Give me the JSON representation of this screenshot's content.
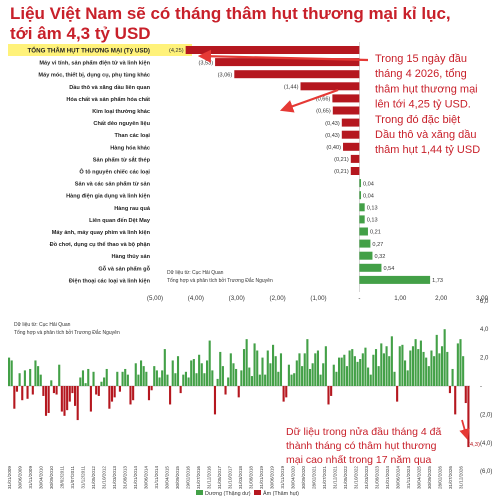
{
  "title": {
    "line1": "Liệu Việt Nam sẽ có tháng thâm hụt thương mại kỉ lục,",
    "line2": "tới âm 4,3 tỷ USD"
  },
  "colors": {
    "negative": "#b5171f",
    "positive": "#43a047",
    "highlight_bg": "#fff27a",
    "annotation": "#c8202a",
    "arrow": "#e53935"
  },
  "chart_data": [
    {
      "type": "bar",
      "orientation": "horizontal",
      "categories": [
        "TỔNG THÂM HỤT THƯƠNG MẠI (Tỷ USD)",
        "Máy vi tính, sản phẩm điện tử và linh kiện",
        "Máy móc, thiết bị, dụng cụ, phụ tùng khác",
        "Dầu thô và xăng dầu liên quan",
        "Hóa chất và sản phẩm hóa chất",
        "Kim loại thường khác",
        "Chất dẻo nguyên liệu",
        "Than các loại",
        "Hàng hóa khác",
        "Sản phẩm từ sắt thép",
        "Ô tô nguyên chiếc các loại",
        "Sản và các sản phẩm từ sản",
        "Hàng điện gia dụng và linh kiện",
        "Hàng rau quả",
        "Liên quan đến Dệt May",
        "Máy ảnh, máy quay phim và linh kiện",
        "Đồ chơi, dụng cụ thể thao và bộ phận",
        "Hàng thủy sản",
        "Gỗ và sản phẩm gỗ",
        "Điện thoại các loại và linh kiện"
      ],
      "values": [
        -4.25,
        -3.53,
        -3.06,
        -1.44,
        -0.66,
        -0.65,
        -0.43,
        -0.43,
        -0.4,
        -0.21,
        -0.21,
        0.04,
        0.04,
        0.13,
        0.13,
        0.21,
        0.27,
        0.32,
        0.54,
        1.73
      ],
      "value_labels": [
        "(4,25)",
        "(3,53)",
        "(3,06)",
        "(1,44)",
        "(0,66)",
        "(0,65)",
        "(0,43)",
        "(0,43)",
        "(0,40)",
        "(0,21)",
        "(0,21)",
        "0,04",
        "0,04",
        "0,13",
        "0,13",
        "0,21",
        "0,27",
        "0,32",
        "0,54",
        "1,73"
      ],
      "xlim": [
        -5,
        3
      ],
      "x_ticks": [
        "(5,00)",
        "(4,00)",
        "(3,00)",
        "(2,00)",
        "(1,00)",
        "-",
        "1,00",
        "2,00",
        "3,00"
      ],
      "source_line1": "Dữ liệu từ: Cục Hải Quan",
      "source_line2": "Tổng hợp và phân tích bởi Trương Đắc Nguyên",
      "annotation_lines": [
        "Trong 15 ngày đầu",
        "tháng 4 2026, tổng",
        "thâm hụt thương mại",
        "lên tới 4,25 tỷ USD.",
        "Trong đó đặc biệt",
        "Dầu thô và xăng dầu",
        "thâm hụt 1,44 tỷ USD"
      ]
    },
    {
      "type": "bar",
      "series": [
        {
          "name": "Dương (Thặng dư)"
        },
        {
          "name": "Âm (Thâm hụt)"
        }
      ],
      "monthly_values": [
        2.0,
        1.8,
        -1.6,
        -0.4,
        0.9,
        -1.0,
        1.1,
        -0.9,
        1.2,
        -0.6,
        1.8,
        1.4,
        0.8,
        -0.7,
        -2.1,
        -1.9,
        0.4,
        -0.5,
        -0.6,
        1.5,
        -1.8,
        -2.1,
        -1.7,
        -1.1,
        -0.5,
        -1.4,
        -2.4,
        0.6,
        1.1,
        0.2,
        1.2,
        -1.8,
        1.0,
        -0.6,
        -0.7,
        0.3,
        0.6,
        1.2,
        -1.6,
        -1.1,
        -0.8,
        1.0,
        -0.4,
        1.0,
        1.2,
        0.8,
        -1.3,
        -1.0,
        1.6,
        0.8,
        1.8,
        1.4,
        1.0,
        -1.0,
        -0.3,
        1.4,
        1.1,
        0.6,
        1.1,
        2.6,
        0.8,
        -1.3,
        1.8,
        0.9,
        2.1,
        -0.5,
        0.8,
        1.0,
        0.6,
        1.8,
        1.9,
        0.9,
        2.2,
        1.6,
        0.9,
        1.8,
        3.2,
        1.1,
        -2.0,
        0.5,
        2.4,
        1.4,
        -0.6,
        0.6,
        2.3,
        1.6,
        1.2,
        -0.8,
        1.1,
        2.6,
        3.3,
        1.3,
        0.7,
        3.0,
        2.5,
        0.8,
        2.0,
        0.8,
        2.5,
        1.6,
        2.9,
        2.1,
        1.0,
        2.3,
        -1.1,
        -0.8,
        1.5,
        0.8,
        0.9,
        1.8,
        2.3,
        1.4,
        2.3,
        3.3,
        1.2,
        1.6,
        2.3,
        2.5,
        0.8,
        1.6,
        2.8,
        -1.3,
        -0.7,
        1.5,
        1.0,
        2.0,
        2.0,
        2.2,
        1.4,
        2.5,
        2.6,
        2.1,
        1.7,
        1.9,
        2.3,
        2.7,
        1.3,
        0.8,
        2.2,
        2.6,
        1.4,
        3.0,
        2.3,
        2.8,
        2.1,
        3.5,
        1.0,
        -1.1,
        2.8,
        2.9,
        1.8,
        1.1,
        2.5,
        2.8,
        3.3,
        2.6,
        3.2,
        2.4,
        2.0,
        1.4,
        2.5,
        2.1,
        3.6,
        2.3,
        2.8,
        4.0,
        2.4,
        -0.5,
        1.2,
        -2.0,
        3.0,
        3.3,
        2.1,
        -1.2,
        -4.3
      ],
      "x_tick_labels": [
        "31/01/2009",
        "30/06/2009",
        "31/11/2009",
        "30/04/2010",
        "30/09/2010",
        "28/02/2011",
        "31/07/2011",
        "31/12/2011",
        "31/05/2012",
        "31/10/2012",
        "31/03/2013",
        "31/08/2013",
        "31/01/2014",
        "30/06/2014",
        "31/11/2014",
        "30/04/2015",
        "30/09/2015",
        "29/02/2016",
        "31/07/2016",
        "31/12/2016",
        "31/05/2017",
        "31/10/2017",
        "31/03/2018",
        "31/08/2018",
        "31/01/2019",
        "30/06/2019",
        "31/11/2019",
        "30/04/2020",
        "30/09/2020",
        "28/02/2021",
        "31/07/2021",
        "31/12/2021",
        "31/05/2022",
        "31/10/2022",
        "31/03/2023",
        "31/08/2023",
        "31/01/2024",
        "30/06/2024",
        "31/11/2024",
        "30/04/2025",
        "30/09/2025",
        "28/02/2026",
        "31/07/2026",
        "31/12/2026"
      ],
      "y_ticks": [
        "6,0",
        "4,0",
        "2,0",
        "-",
        "(2,0)",
        "(4,0)",
        "(6,0)"
      ],
      "ylim": [
        -6,
        6
      ],
      "last_value_label": "(4,3)",
      "source_line1": "Dữ liệu từ: Cục Hải Quan",
      "source_line2": "Tổng hợp và phân tích bởi Trương Đắc Nguyên",
      "legend": [
        "Dương (Thặng dư)",
        "Âm (Thâm hụt)"
      ],
      "annotation_lines": [
        "Dữ liệu trong nửa đầu tháng 4 đã",
        "thành tháng có thâm hụt thương",
        "mại cao nhất trong 17 năm qua"
      ]
    }
  ]
}
